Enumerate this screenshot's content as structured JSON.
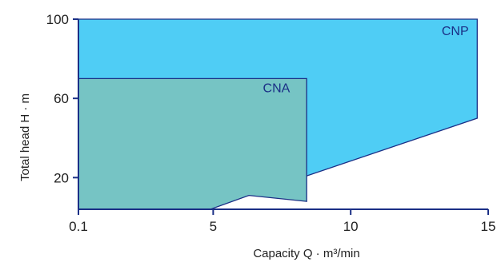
{
  "chart_data": {
    "type": "area",
    "xlabel": "Capacity  Q · m³/min",
    "ylabel": "Total head  H · m",
    "xlim": [
      0.1,
      15
    ],
    "ylim": [
      4,
      100
    ],
    "x_ticks": [
      {
        "value": 0.1,
        "label": "0.1"
      },
      {
        "value": 5,
        "label": "5"
      },
      {
        "value": 10,
        "label": "10"
      },
      {
        "value": 15,
        "label": "15"
      }
    ],
    "y_ticks": [
      {
        "value": 20,
        "label": "20"
      },
      {
        "value": 60,
        "label": "60"
      },
      {
        "value": 100,
        "label": "100"
      }
    ],
    "series": [
      {
        "name": "CNP",
        "fill": "#4fcdf5",
        "stroke": "#1b2f86",
        "label_at": [
          13.8,
          92
        ],
        "points": [
          [
            0.1,
            100
          ],
          [
            14.6,
            100
          ],
          [
            14.6,
            50
          ],
          [
            6.3,
            11
          ],
          [
            0.1,
            6
          ]
        ]
      },
      {
        "name": "CNA",
        "fill": "#76c4c4",
        "stroke": "#1b2f86",
        "label_at": [
          7.3,
          63
        ],
        "points": [
          [
            0.1,
            70
          ],
          [
            8.4,
            70
          ],
          [
            8.4,
            8
          ],
          [
            6.3,
            11
          ],
          [
            4.9,
            4
          ],
          [
            0.1,
            4
          ]
        ]
      }
    ],
    "axis_color": "#1b2f86",
    "grid": false
  }
}
